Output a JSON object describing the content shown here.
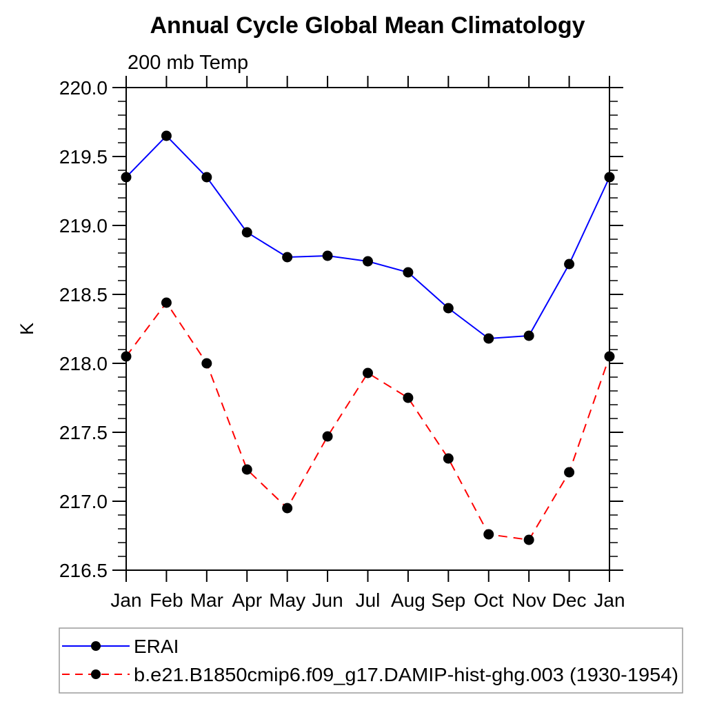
{
  "page": {
    "background": "#ffffff"
  },
  "chart_data": {
    "type": "line",
    "title": "Annual Cycle Global Mean Climatology",
    "subtitle": "200 mb Temp",
    "ylabel": "K",
    "x_categories": [
      "Jan",
      "Feb",
      "Mar",
      "Apr",
      "May",
      "Jun",
      "Jul",
      "Aug",
      "Sep",
      "Oct",
      "Nov",
      "Dec",
      "Jan"
    ],
    "ylim": [
      216.5,
      220.0
    ],
    "y_major_step": 0.5,
    "y_minor_step": 0.1,
    "y_tick_labels": [
      "220.0",
      "219.5",
      "219.0",
      "218.5",
      "218.0",
      "217.5",
      "217.0",
      "216.5"
    ],
    "grid": false,
    "axis_color": "#000000",
    "marker_color": "#000000",
    "legend_position": "bottom",
    "series": [
      {
        "name": "ERAI",
        "color": "#0000ff",
        "line_style": "solid",
        "marker": "circle",
        "values": [
          219.35,
          219.65,
          219.35,
          218.95,
          218.77,
          218.78,
          218.74,
          218.66,
          218.4,
          218.18,
          218.2,
          218.72,
          219.35
        ]
      },
      {
        "name": "b.e21.B1850cmip6.f09_g17.DAMIP-hist-ghg.003 (1930-1954)",
        "color": "#ff0000",
        "line_style": "dashed",
        "marker": "circle",
        "values": [
          218.05,
          218.44,
          218.0,
          217.23,
          216.95,
          217.47,
          217.93,
          217.75,
          217.31,
          216.76,
          216.72,
          217.21,
          218.05
        ]
      }
    ]
  }
}
